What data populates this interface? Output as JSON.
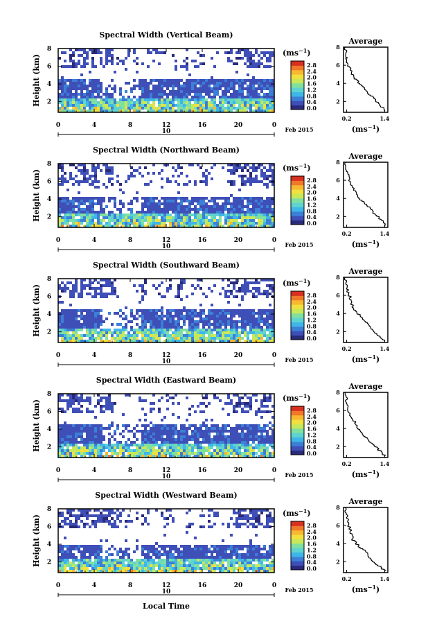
{
  "figure": {
    "date_label": "Feb 2015",
    "xlabel": "Local Time",
    "day_label": "10",
    "colorbar": {
      "unit": "(ms",
      "unit_exp": "−1",
      "unit_close": ")",
      "ticks": [
        "2.8",
        "2.4",
        "2.0",
        "1.6",
        "1.2",
        "0.8",
        "0.4",
        "0.0"
      ],
      "colors": [
        "#2a2a7a",
        "#3f4fb8",
        "#3c7fd6",
        "#3fb6e8",
        "#5fd3d0",
        "#7fe0a0",
        "#c8e85a",
        "#f0e040",
        "#f8b830",
        "#f07828",
        "#d83020"
      ]
    },
    "avg_title": "Average",
    "avg_xticks": [
      "0.2",
      "1.4"
    ],
    "avg_xlabel": "(ms",
    "avg_xlabel_exp": "−1",
    "avg_xlabel_close": ")",
    "avg_yticks": [
      "2",
      "4",
      "6",
      "8"
    ]
  },
  "chart_data": [
    {
      "type": "heatmap",
      "title": "Spectral Width (Vertical Beam)",
      "ylabel": "Height (km)",
      "xticks": [
        "0",
        "4",
        "8",
        "12",
        "16",
        "20",
        "0"
      ],
      "yticks": [
        "2",
        "4",
        "6",
        "8"
      ],
      "xlim": [
        0,
        24
      ],
      "ylim": [
        0.8,
        8
      ],
      "mid_gap": [
        4.6,
        6.0
      ],
      "profile": [
        [
          0.15,
          8.0
        ],
        [
          0.18,
          7.0
        ],
        [
          0.2,
          6.6
        ],
        [
          0.25,
          6.0
        ],
        [
          0.3,
          5.6
        ],
        [
          0.35,
          5.0
        ],
        [
          0.45,
          4.6
        ],
        [
          0.55,
          4.2
        ],
        [
          0.7,
          3.6
        ],
        [
          0.85,
          3.0
        ],
        [
          1.0,
          2.5
        ],
        [
          1.2,
          1.8
        ],
        [
          1.4,
          1.0
        ]
      ]
    },
    {
      "type": "heatmap",
      "title": "Spectral Width (Northward Beam)",
      "ylabel": "Height (km)",
      "xticks": [
        "0",
        "4",
        "8",
        "12",
        "16",
        "20",
        "0"
      ],
      "yticks": [
        "2",
        "4",
        "6",
        "8"
      ],
      "xlim": [
        0,
        24
      ],
      "ylim": [
        0.8,
        8
      ],
      "mid_gap": [
        4.4,
        5.8
      ],
      "profile": [
        [
          0.15,
          8.0
        ],
        [
          0.2,
          7.0
        ],
        [
          0.25,
          6.4
        ],
        [
          0.3,
          5.8
        ],
        [
          0.4,
          5.2
        ],
        [
          0.5,
          4.6
        ],
        [
          0.6,
          4.0
        ],
        [
          0.8,
          3.4
        ],
        [
          0.95,
          2.8
        ],
        [
          1.1,
          2.2
        ],
        [
          1.3,
          1.6
        ],
        [
          1.4,
          1.0
        ]
      ]
    },
    {
      "type": "heatmap",
      "title": "Spectral Width (Southward Beam)",
      "ylabel": "Height (km)",
      "xticks": [
        "0",
        "4",
        "8",
        "12",
        "16",
        "20",
        "0"
      ],
      "yticks": [
        "2",
        "4",
        "6",
        "8"
      ],
      "xlim": [
        0,
        24
      ],
      "ylim": [
        0.8,
        8
      ],
      "mid_gap": [
        4.6,
        6.0
      ],
      "profile": [
        [
          0.15,
          8.0
        ],
        [
          0.2,
          7.0
        ],
        [
          0.22,
          6.4
        ],
        [
          0.3,
          5.8
        ],
        [
          0.35,
          5.0
        ],
        [
          0.45,
          4.4
        ],
        [
          0.6,
          3.8
        ],
        [
          0.75,
          3.2
        ],
        [
          0.9,
          2.6
        ],
        [
          1.05,
          2.0
        ],
        [
          1.25,
          1.4
        ],
        [
          1.4,
          1.0
        ]
      ]
    },
    {
      "type": "heatmap",
      "title": "Spectral Width (Eastward Beam)",
      "ylabel": "Height (km)",
      "xticks": [
        "0",
        "4",
        "8",
        "12",
        "16",
        "20",
        "0"
      ],
      "yticks": [
        "2",
        "4",
        "6",
        "8"
      ],
      "xlim": [
        0,
        24
      ],
      "ylim": [
        0.8,
        8
      ],
      "mid_gap": [
        4.6,
        6.0
      ],
      "profile": [
        [
          0.15,
          8.0
        ],
        [
          0.2,
          7.0
        ],
        [
          0.25,
          6.2
        ],
        [
          0.3,
          5.6
        ],
        [
          0.4,
          5.0
        ],
        [
          0.5,
          4.4
        ],
        [
          0.6,
          3.8
        ],
        [
          0.75,
          3.2
        ],
        [
          0.9,
          2.6
        ],
        [
          1.1,
          2.0
        ],
        [
          1.25,
          1.5
        ],
        [
          1.4,
          1.0
        ]
      ]
    },
    {
      "type": "heatmap",
      "title": "Spectral Width (Westward Beam)",
      "ylabel": "Height (km)",
      "xticks": [
        "0",
        "4",
        "8",
        "12",
        "16",
        "20",
        "0"
      ],
      "yticks": [
        "2",
        "4",
        "6",
        "8"
      ],
      "xlim": [
        0,
        24
      ],
      "ylim": [
        0.8,
        8
      ],
      "mid_gap": [
        4.0,
        6.0
      ],
      "profile": [
        [
          0.15,
          8.0
        ],
        [
          0.2,
          7.0
        ],
        [
          0.25,
          6.2
        ],
        [
          0.3,
          5.6
        ],
        [
          0.35,
          5.0
        ],
        [
          0.4,
          4.4
        ],
        [
          0.55,
          3.8
        ],
        [
          0.75,
          3.2
        ],
        [
          0.9,
          2.6
        ],
        [
          1.05,
          2.0
        ],
        [
          1.25,
          1.4
        ],
        [
          1.4,
          1.0
        ]
      ]
    }
  ]
}
